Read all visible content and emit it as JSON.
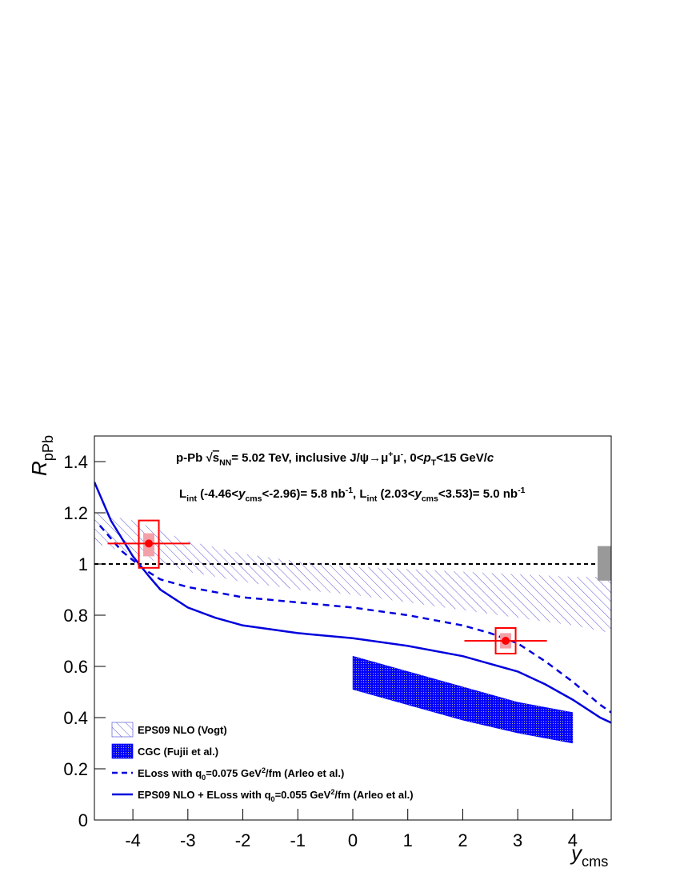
{
  "chart_data": {
    "type": "line",
    "annotations": [
      [
        {
          "text": "p-Pb "
        },
        {
          "text": "√"
        },
        {
          "over": "s"
        },
        {
          "sub": "NN"
        },
        {
          "text": "= 5.02 TeV, inclusive J/ψ→μ"
        },
        {
          "sup": "+"
        },
        {
          "text": "μ"
        },
        {
          "sup": "-"
        },
        {
          "text": ", 0<"
        },
        {
          "italic": "p"
        },
        {
          "sub": "T"
        },
        {
          "text": "<15 GeV/"
        },
        {
          "italic": "c"
        }
      ],
      [
        {
          "text": "L"
        },
        {
          "sub": "int"
        },
        {
          "text": " (-4.46<"
        },
        {
          "italic": "y"
        },
        {
          "sub": "cms"
        },
        {
          "text": "<-2.96)= 5.8 nb"
        },
        {
          "sup": "-1"
        },
        {
          "text": ", L"
        },
        {
          "sub": "int"
        },
        {
          "text": " (2.03<"
        },
        {
          "italic": "y"
        },
        {
          "sub": "cms"
        },
        {
          "text": "<3.53)= 5.0 nb"
        },
        {
          "sup": "-1"
        }
      ]
    ],
    "x_label": [
      {
        "italic": "y"
      },
      {
        "sub": "cms"
      }
    ],
    "y_label": [
      {
        "italic": "R"
      },
      {
        "sub": "pPb"
      }
    ],
    "xlim": [
      -4.7,
      4.7
    ],
    "ylim": [
      0,
      1.5
    ],
    "xticks": [
      -4,
      -3,
      -2,
      -1,
      0,
      1,
      2,
      3,
      4
    ],
    "yticks": [
      0,
      0.2,
      0.4,
      0.6,
      0.8,
      1,
      1.2,
      1.4
    ],
    "reference_line": 1,
    "series": [
      {
        "type": "band",
        "style": "hatch",
        "color": "#5a5ad8",
        "name": [
          {
            "text": "EPS09 NLO (Vogt)"
          }
        ],
        "x": [
          -4.7,
          -4,
          -3,
          -2,
          -1,
          0,
          1,
          2,
          3,
          4,
          4.7
        ],
        "upper": [
          1.2,
          1.17,
          1.09,
          1.04,
          1.01,
          0.99,
          0.98,
          0.97,
          0.96,
          0.95,
          0.95
        ],
        "lower": [
          1.08,
          1.04,
          0.97,
          0.93,
          0.9,
          0.88,
          0.85,
          0.82,
          0.79,
          0.76,
          0.73
        ]
      },
      {
        "type": "band",
        "style": "dots",
        "color": "#0000ff",
        "name": [
          {
            "text": "CGC (Fujii et al.)"
          }
        ],
        "x": [
          0,
          1,
          2,
          3,
          4
        ],
        "upper": [
          0.64,
          0.58,
          0.52,
          0.46,
          0.42
        ],
        "lower": [
          0.51,
          0.45,
          0.39,
          0.34,
          0.3
        ]
      },
      {
        "type": "line",
        "dash": true,
        "color": "#0000dd",
        "name": [
          {
            "text": "ELoss with q"
          },
          {
            "sub": "0"
          },
          {
            "text": "=0.075 GeV"
          },
          {
            "sup": "2"
          },
          {
            "text": "/fm (Arleo et al.)"
          }
        ],
        "x": [
          -4.6,
          -4.2,
          -3.8,
          -3.5,
          -3,
          -2,
          -1,
          0,
          1,
          2,
          2.5,
          3,
          3.5,
          4,
          4.5,
          4.7
        ],
        "values": [
          1.15,
          1.05,
          0.98,
          0.94,
          0.91,
          0.87,
          0.85,
          0.83,
          0.8,
          0.76,
          0.73,
          0.69,
          0.62,
          0.54,
          0.45,
          0.42
        ]
      },
      {
        "type": "line",
        "dash": false,
        "color": "#0000dd",
        "name": [
          {
            "text": "EPS09 NLO + ELoss with q"
          },
          {
            "sub": "0"
          },
          {
            "text": "=0.055 GeV"
          },
          {
            "sup": "2"
          },
          {
            "text": "/fm (Arleo et al.)"
          }
        ],
        "x": [
          -4.7,
          -4.4,
          -4,
          -3.7,
          -3.5,
          -3,
          -2.5,
          -2,
          -1,
          0,
          1,
          2,
          3,
          3.5,
          4,
          4.5,
          4.7
        ],
        "values": [
          1.32,
          1.17,
          1.03,
          0.95,
          0.9,
          0.83,
          0.79,
          0.76,
          0.73,
          0.71,
          0.68,
          0.64,
          0.58,
          0.53,
          0.47,
          0.4,
          0.38
        ]
      },
      {
        "type": "errorbar",
        "color": "#ff0000",
        "x": [
          -3.71,
          2.78
        ],
        "values": [
          1.08,
          0.7
        ],
        "x_low": [
          -4.46,
          2.03
        ],
        "x_high": [
          -2.96,
          3.53
        ],
        "uncorr_low": [
          1.03,
          0.67
        ],
        "uncorr_high": [
          1.12,
          0.73
        ],
        "syst_low": [
          0.985,
          0.65
        ],
        "syst_high": [
          1.17,
          0.75
        ]
      }
    ],
    "global_syst": [
      0.935,
      1.07
    ],
    "global_syst_color": "#999999"
  }
}
